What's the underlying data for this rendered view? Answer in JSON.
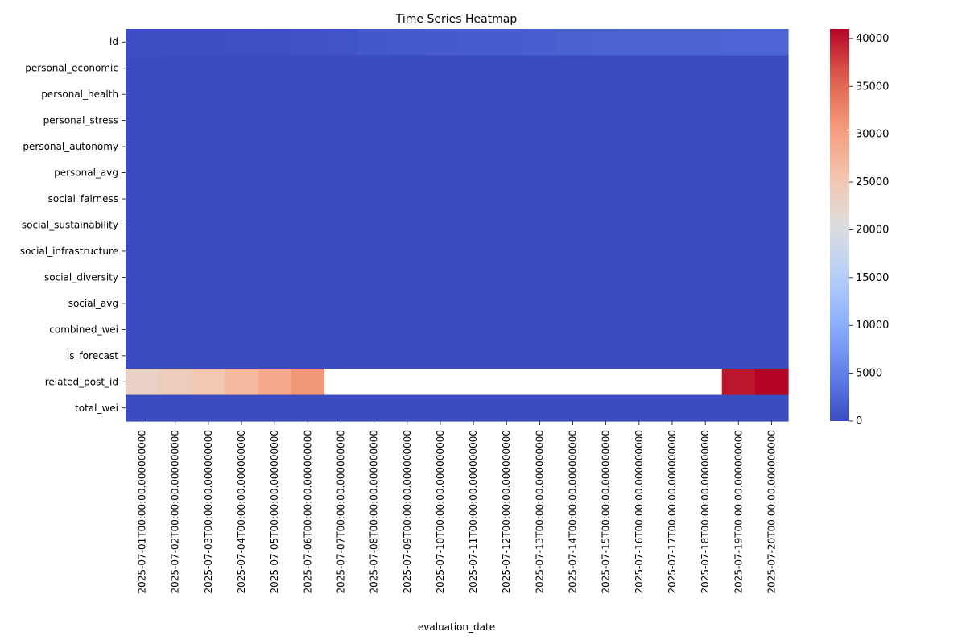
{
  "chart_data": {
    "type": "heatmap",
    "title": "Time Series Heatmap",
    "xlabel": "evaluation_date",
    "ylabel": "",
    "rows": [
      "id",
      "personal_economic",
      "personal_health",
      "personal_stress",
      "personal_autonomy",
      "personal_avg",
      "social_fairness",
      "social_sustainability",
      "social_infrastructure",
      "social_diversity",
      "social_avg",
      "combined_wei",
      "is_forecast",
      "related_post_id",
      "total_wei"
    ],
    "columns": [
      "2025-07-01T00:00:00.000000000",
      "2025-07-02T00:00:00.000000000",
      "2025-07-03T00:00:00.000000000",
      "2025-07-04T00:00:00.000000000",
      "2025-07-05T00:00:00.000000000",
      "2025-07-06T00:00:00.000000000",
      "2025-07-07T00:00:00.000000000",
      "2025-07-08T00:00:00.000000000",
      "2025-07-09T00:00:00.000000000",
      "2025-07-10T00:00:00.000000000",
      "2025-07-11T00:00:00.000000000",
      "2025-07-12T00:00:00.000000000",
      "2025-07-13T00:00:00.000000000",
      "2025-07-14T00:00:00.000000000",
      "2025-07-15T00:00:00.000000000",
      "2025-07-16T00:00:00.000000000",
      "2025-07-17T00:00:00.000000000",
      "2025-07-18T00:00:00.000000000",
      "2025-07-19T00:00:00.000000000",
      "2025-07-20T00:00:00.000000000"
    ],
    "values": [
      [
        100,
        150,
        200,
        300,
        400,
        600,
        800,
        1100,
        1200,
        1400,
        1500,
        1600,
        1800,
        2000,
        2100,
        2200,
        2200,
        2200,
        2400,
        2400
      ],
      [
        0,
        0,
        0,
        0,
        0,
        0,
        0,
        0,
        0,
        0,
        0,
        0,
        0,
        0,
        0,
        0,
        0,
        0,
        0,
        0
      ],
      [
        0,
        0,
        0,
        0,
        0,
        0,
        0,
        0,
        0,
        0,
        0,
        0,
        0,
        0,
        0,
        0,
        0,
        0,
        0,
        0
      ],
      [
        0,
        0,
        0,
        0,
        0,
        0,
        0,
        0,
        0,
        0,
        0,
        0,
        0,
        0,
        0,
        0,
        0,
        0,
        0,
        0
      ],
      [
        0,
        0,
        0,
        0,
        0,
        0,
        0,
        0,
        0,
        0,
        0,
        0,
        0,
        0,
        0,
        0,
        0,
        0,
        0,
        0
      ],
      [
        0,
        0,
        0,
        0,
        0,
        0,
        0,
        0,
        0,
        0,
        0,
        0,
        0,
        0,
        0,
        0,
        0,
        0,
        0,
        0
      ],
      [
        0,
        0,
        0,
        0,
        0,
        0,
        0,
        0,
        0,
        0,
        0,
        0,
        0,
        0,
        0,
        0,
        0,
        0,
        0,
        0
      ],
      [
        0,
        0,
        0,
        0,
        0,
        0,
        0,
        0,
        0,
        0,
        0,
        0,
        0,
        0,
        0,
        0,
        0,
        0,
        0,
        0
      ],
      [
        0,
        0,
        0,
        0,
        0,
        0,
        0,
        0,
        0,
        0,
        0,
        0,
        0,
        0,
        0,
        0,
        0,
        0,
        0,
        0
      ],
      [
        0,
        0,
        0,
        0,
        0,
        0,
        0,
        0,
        0,
        0,
        0,
        0,
        0,
        0,
        0,
        0,
        0,
        0,
        0,
        0
      ],
      [
        0,
        0,
        0,
        0,
        0,
        0,
        0,
        0,
        0,
        0,
        0,
        0,
        0,
        0,
        0,
        0,
        0,
        0,
        0,
        0
      ],
      [
        0,
        0,
        0,
        0,
        0,
        0,
        0,
        0,
        0,
        0,
        0,
        0,
        0,
        0,
        0,
        0,
        0,
        0,
        0,
        0
      ],
      [
        0,
        0,
        0,
        0,
        0,
        0,
        0,
        0,
        0,
        0,
        0,
        0,
        0,
        0,
        0,
        0,
        0,
        0,
        0,
        0
      ],
      [
        23000,
        24000,
        25000,
        27000,
        29000,
        31000,
        null,
        null,
        null,
        null,
        null,
        null,
        null,
        null,
        null,
        null,
        null,
        null,
        40000,
        41000
      ],
      [
        0,
        0,
        0,
        0,
        0,
        0,
        0,
        0,
        0,
        0,
        0,
        0,
        0,
        0,
        0,
        0,
        0,
        0,
        0,
        0
      ]
    ],
    "colormap": "coolwarm",
    "vmin": 0,
    "vmax": 41000,
    "colorbar_ticks": [
      0,
      5000,
      10000,
      15000,
      20000,
      25000,
      30000,
      35000,
      40000
    ],
    "missing_color": "#ffffff"
  }
}
